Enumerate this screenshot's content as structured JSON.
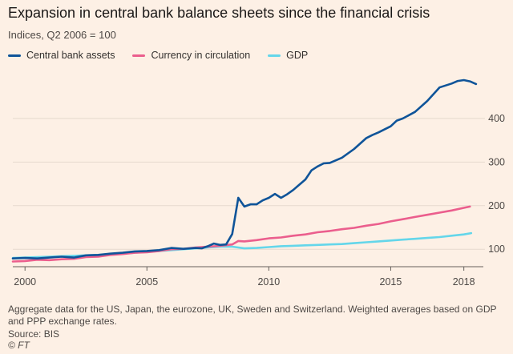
{
  "chart_data": {
    "type": "line",
    "title": "Expansion in central bank balance sheets since the financial crisis",
    "subtitle": "Indices, Q2 2006 = 100",
    "xlim": [
      1999.5,
      2018.8
    ],
    "ylim": [
      60,
      510
    ],
    "x_ticks": [
      {
        "value": 2000,
        "label": "2000"
      },
      {
        "value": 2005,
        "label": "2005"
      },
      {
        "value": 2010,
        "label": "2010"
      },
      {
        "value": 2015,
        "label": "2015"
      },
      {
        "value": 2018,
        "label": "2018"
      }
    ],
    "y_ticks": [
      {
        "value": 100,
        "label": "100"
      },
      {
        "value": 200,
        "label": "200"
      },
      {
        "value": 300,
        "label": "300"
      },
      {
        "value": 400,
        "label": "400"
      }
    ],
    "grid": true,
    "legend_position": "top-left",
    "series": [
      {
        "name": "Central bank assets",
        "color": "#0f5499",
        "x": [
          1999.5,
          2000,
          2000.5,
          2001,
          2001.5,
          2002,
          2002.5,
          2003,
          2003.5,
          2004,
          2004.5,
          2005,
          2005.5,
          2006,
          2006.5,
          2007,
          2007.25,
          2007.5,
          2007.75,
          2008,
          2008.25,
          2008.5,
          2008.75,
          2009,
          2009.25,
          2009.5,
          2009.75,
          2010,
          2010.25,
          2010.5,
          2010.75,
          2011,
          2011.25,
          2011.5,
          2011.75,
          2012,
          2012.25,
          2012.5,
          2013,
          2013.5,
          2014,
          2014.25,
          2014.5,
          2015,
          2015.25,
          2015.5,
          2016,
          2016.5,
          2017,
          2017.5,
          2017.75,
          2018,
          2018.25,
          2018.5
        ],
        "y": [
          79,
          80,
          79,
          81,
          83,
          81,
          86,
          87,
          90,
          92,
          95,
          96,
          98,
          103,
          101,
          103,
          102,
          107,
          113,
          110,
          111,
          135,
          218,
          198,
          203,
          203,
          212,
          218,
          227,
          218,
          226,
          236,
          248,
          260,
          281,
          290,
          297,
          298,
          310,
          330,
          355,
          362,
          368,
          382,
          395,
          400,
          415,
          440,
          471,
          480,
          486,
          488,
          485,
          479
        ]
      },
      {
        "name": "Currency in circulation",
        "color": "#eb5e8d",
        "x": [
          1999.5,
          2000,
          2000.5,
          2001,
          2001.5,
          2002,
          2002.5,
          2003,
          2003.5,
          2004,
          2004.5,
          2005,
          2005.5,
          2006,
          2006.5,
          2007,
          2007.5,
          2008,
          2008.5,
          2008.75,
          2009,
          2009.5,
          2010,
          2010.5,
          2011,
          2011.5,
          2012,
          2012.5,
          2013,
          2013.5,
          2014,
          2014.5,
          2015,
          2015.5,
          2016,
          2016.5,
          2017,
          2017.5,
          2018,
          2018.25
        ],
        "y": [
          72,
          73,
          76,
          75,
          77,
          78,
          82,
          83,
          87,
          89,
          92,
          93,
          96,
          100,
          101,
          104,
          106,
          108,
          111,
          119,
          118,
          121,
          125,
          127,
          131,
          134,
          139,
          142,
          146,
          149,
          154,
          158,
          164,
          169,
          174,
          179,
          184,
          189,
          195,
          198
        ]
      },
      {
        "name": "GDP",
        "color": "#64d6ea",
        "x": [
          1999.5,
          2000,
          2000.5,
          2001,
          2001.5,
          2002,
          2002.5,
          2003,
          2003.5,
          2004,
          2004.5,
          2005,
          2005.5,
          2006,
          2006.5,
          2007,
          2007.5,
          2008,
          2008.5,
          2009,
          2009.5,
          2010,
          2010.5,
          2011,
          2011.5,
          2012,
          2012.5,
          2013,
          2013.5,
          2014,
          2014.5,
          2015,
          2015.5,
          2016,
          2016.5,
          2017,
          2017.5,
          2018,
          2018.3
        ],
        "y": [
          80,
          81,
          82,
          83,
          84,
          85,
          86,
          87,
          89,
          90,
          92,
          94,
          96,
          98,
          100,
          102,
          104,
          106,
          106,
          102,
          103,
          105,
          107,
          108,
          109,
          110,
          111,
          112,
          114,
          116,
          118,
          120,
          122,
          124,
          126,
          128,
          131,
          134,
          137
        ]
      }
    ]
  },
  "footnote": "Aggregate data for the US, Japan, the eurozone, UK, Sweden and Switzerland. Weighted averages based on GDP and PPP exchange rates.",
  "source": "Source: BIS",
  "credit": "© FT"
}
